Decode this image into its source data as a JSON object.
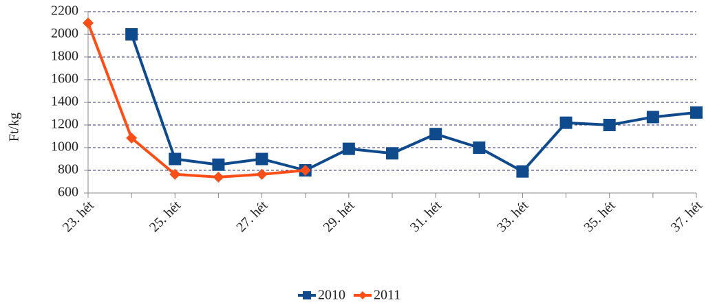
{
  "chart_data": {
    "type": "line",
    "y_label": "Ft/kg",
    "categories": [
      "23. hét",
      null,
      "25. hét",
      null,
      "27. hét",
      null,
      "29. hét",
      null,
      "31. hét",
      null,
      "33. hét",
      null,
      "35. hét",
      null,
      "37. hét"
    ],
    "series": [
      {
        "name": "2010",
        "color": "#0f4a8c",
        "marker": "square",
        "values": [
          null,
          2000,
          900,
          850,
          900,
          800,
          990,
          950,
          1120,
          1000,
          790,
          1220,
          1200,
          1270,
          1310
        ]
      },
      {
        "name": "2011",
        "color": "#ff4e17",
        "marker": "diamond",
        "values": [
          2100,
          1085,
          765,
          740,
          765,
          800,
          null,
          null,
          null,
          null,
          null,
          null,
          null,
          null,
          null
        ]
      }
    ],
    "ylim": [
      600,
      2200
    ],
    "yticks": [
      600,
      800,
      1000,
      1200,
      1400,
      1600,
      1800,
      2000,
      2200
    ],
    "grid": true,
    "legend": "bottom"
  }
}
